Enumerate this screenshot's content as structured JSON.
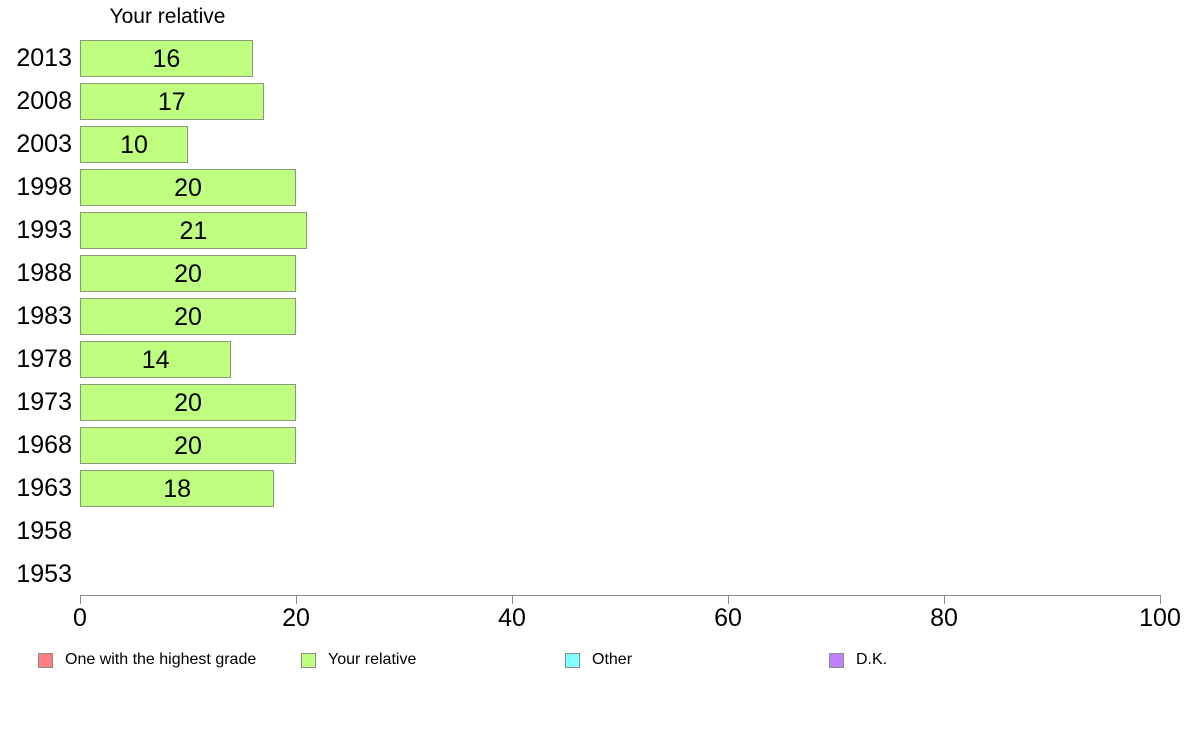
{
  "chart_data": {
    "type": "bar",
    "orientation": "horizontal",
    "title": "Your relative",
    "categories": [
      "2013",
      "2008",
      "2003",
      "1998",
      "1993",
      "1988",
      "1983",
      "1978",
      "1973",
      "1968",
      "1963",
      "1958",
      "1953"
    ],
    "values": [
      16,
      17,
      10,
      20,
      21,
      20,
      20,
      14,
      20,
      20,
      18,
      null,
      null
    ],
    "bar_labels_shown": true,
    "xlim": [
      0,
      100
    ],
    "x_ticks": [
      "0",
      "20",
      "40",
      "60",
      "80",
      "100"
    ],
    "grid": "off",
    "bar_color": "#bfff80",
    "bar_border_color": "#8a9a78",
    "axis_color": "#8c8c8c",
    "text_color": "#000000",
    "background_color": "#ffffff",
    "legend_position": "bottom",
    "legend": [
      {
        "label": "One with the highest grade",
        "color": "#ff8080"
      },
      {
        "label": "Your relative",
        "color": "#bfff80"
      },
      {
        "label": "Other",
        "color": "#80ffff"
      },
      {
        "label": "D.K.",
        "color": "#bf80ff"
      }
    ]
  }
}
